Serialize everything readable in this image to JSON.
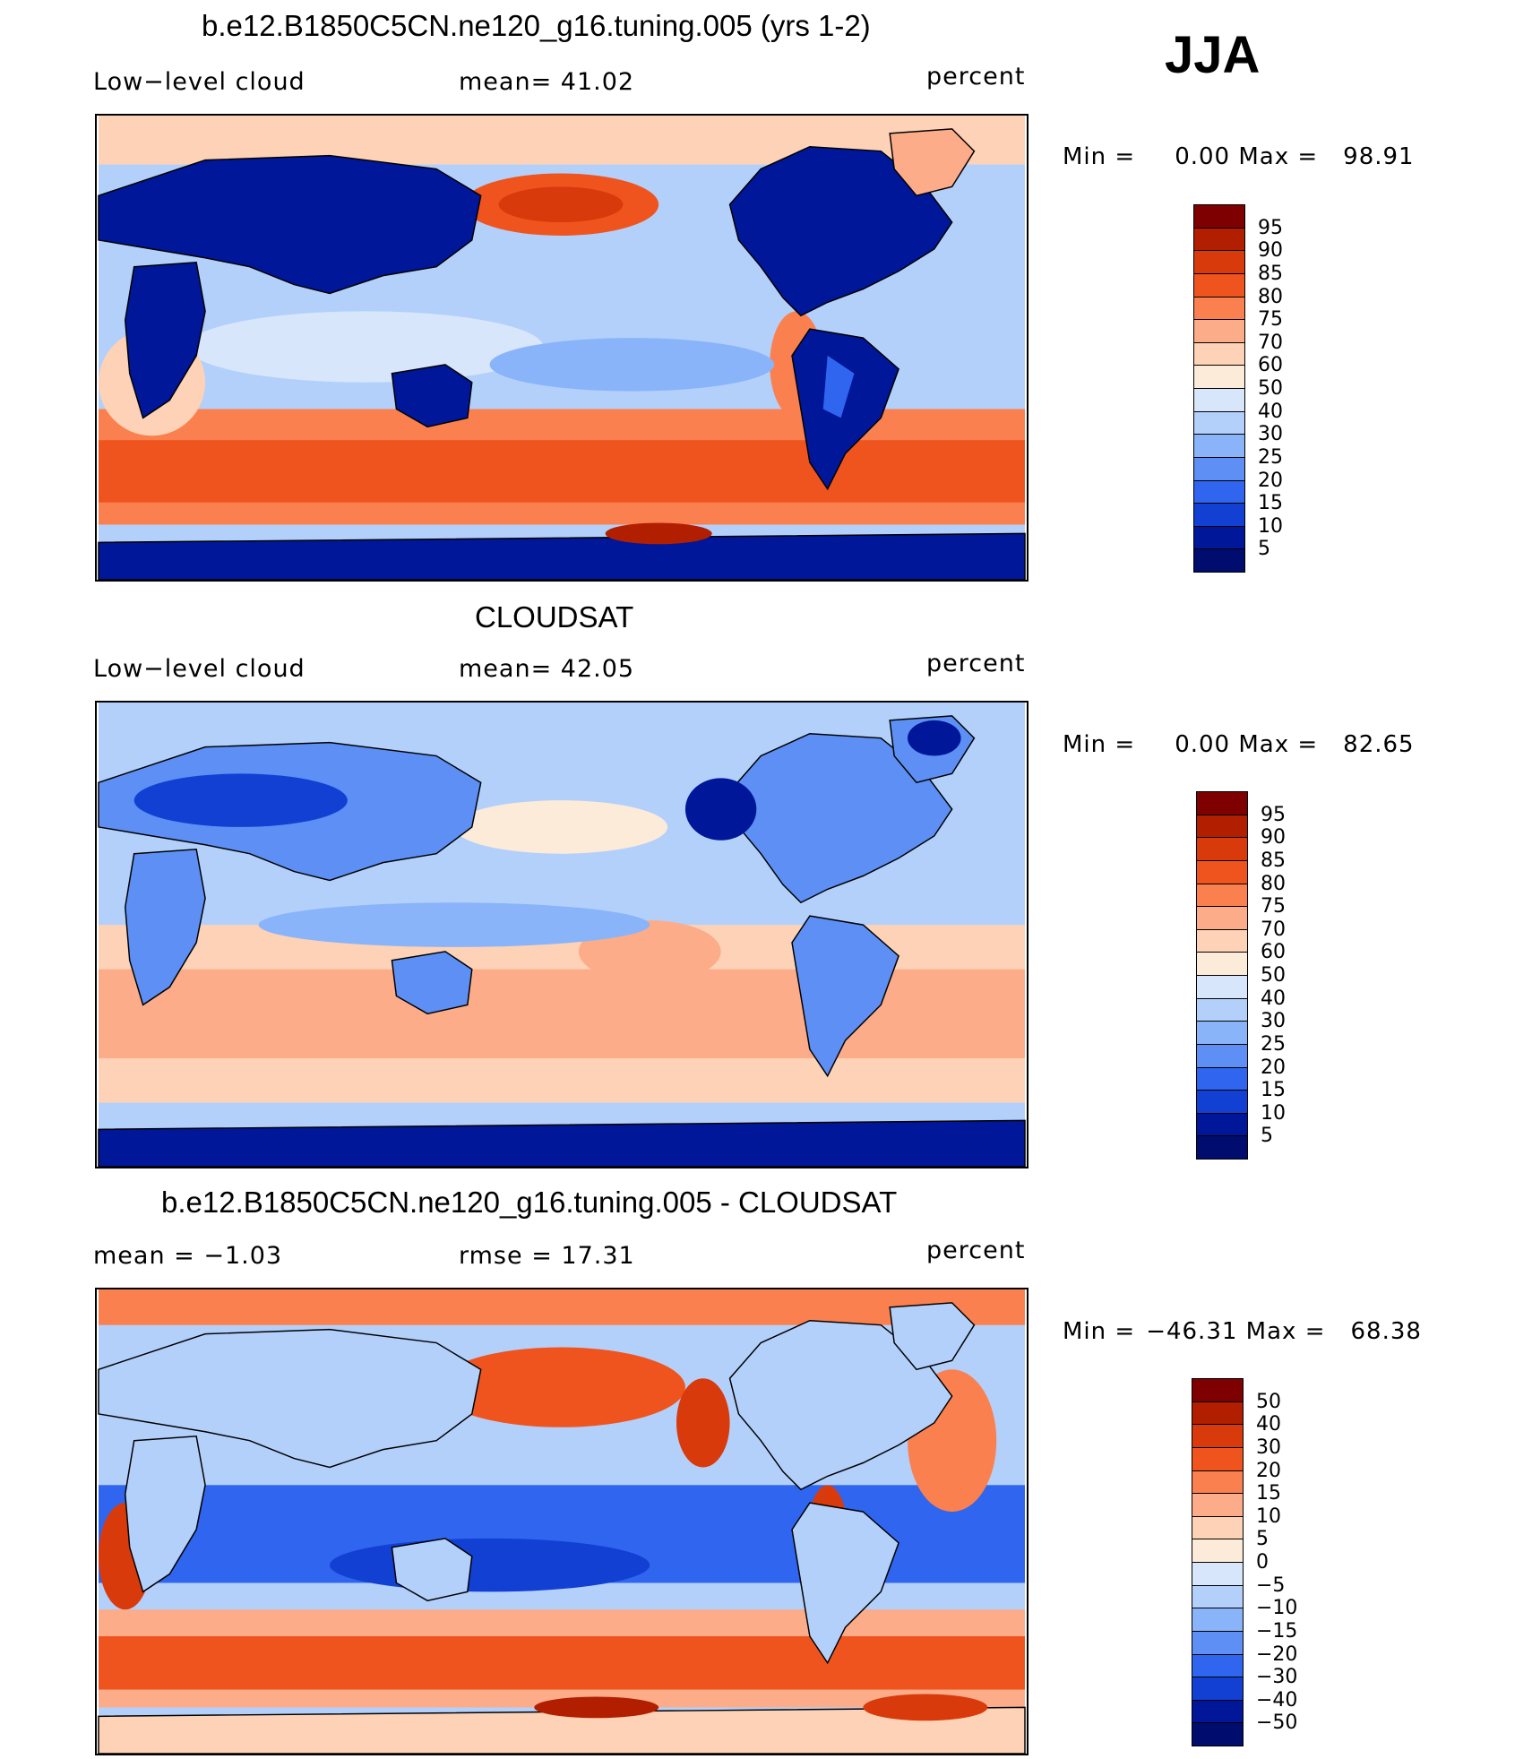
{
  "season": "JJA",
  "units": "percent",
  "panels": [
    {
      "id": "model",
      "title": "b.e12.B1850C5CN.ne120_g16.tuning.005 (yrs 1-2)",
      "left_label": "Low−level cloud",
      "center_label": "mean=   41.02",
      "right_label": "percent",
      "min_label": "Min  =",
      "min_value": "0.00",
      "max_label": "Max  =",
      "max_value": "98.91",
      "colorbar_labels": [
        "95",
        "90",
        "85",
        "80",
        "75",
        "70",
        "60",
        "50",
        "40",
        "30",
        "25",
        "20",
        "15",
        "10",
        "5"
      ]
    },
    {
      "id": "obs",
      "title": "CLOUDSAT",
      "left_label": "Low−level cloud",
      "center_label": "mean=   42.05",
      "right_label": "percent",
      "min_label": "Min  =",
      "min_value": "0.00",
      "max_label": "Max  =",
      "max_value": "82.65",
      "colorbar_labels": [
        "95",
        "90",
        "85",
        "80",
        "75",
        "70",
        "60",
        "50",
        "40",
        "30",
        "25",
        "20",
        "15",
        "10",
        "5"
      ]
    },
    {
      "id": "diff",
      "title": "b.e12.B1850C5CN.ne120_g16.tuning.005 - CLOUDSAT",
      "left_label": "mean  =   −1.03",
      "center_label": "rmse  =   17.31",
      "right_label": "percent",
      "min_label": "Min  =",
      "min_value": "−46.31",
      "max_label": "Max  =",
      "max_value": "68.38",
      "colorbar_labels": [
        "50",
        "40",
        "30",
        "20",
        "15",
        "10",
        "5",
        "0",
        "−5",
        "−10",
        "−15",
        "−20",
        "−30",
        "−40",
        "−50"
      ]
    }
  ],
  "colors": {
    "scale": [
      "#7f0000",
      "#b21e00",
      "#d93a0c",
      "#f0541e",
      "#fa8050",
      "#fcac88",
      "#fdd2b6",
      "#fdebd9",
      "#d7e6fb",
      "#b3d0fb",
      "#8ab4f9",
      "#5d8ff4",
      "#2f65ef",
      "#1240d2",
      "#001799",
      "#000c6e"
    ]
  }
}
